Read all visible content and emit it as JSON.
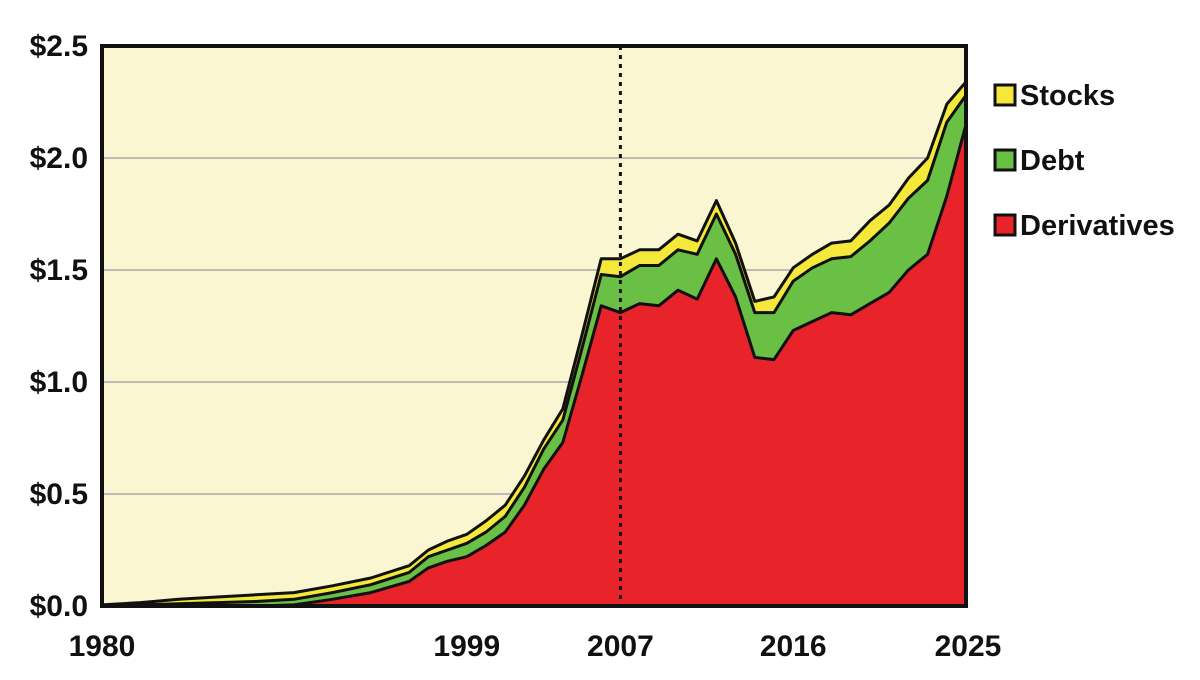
{
  "chart_data": {
    "type": "area",
    "stacked": true,
    "x_min": 1980,
    "x_max": 2025,
    "ylim": [
      0,
      2.5
    ],
    "grid": true,
    "legend_position": "right",
    "y_ticks": [
      {
        "value": 0.0,
        "label": "$0.0"
      },
      {
        "value": 0.5,
        "label": "$0.5"
      },
      {
        "value": 1.0,
        "label": "$1.0"
      },
      {
        "value": 1.5,
        "label": "$1.5"
      },
      {
        "value": 2.0,
        "label": "$2.0"
      },
      {
        "value": 2.5,
        "label": "$2.5"
      }
    ],
    "x_ticks": [
      {
        "value": 1980,
        "label": "1980"
      },
      {
        "value": 1999,
        "label": "1999"
      },
      {
        "value": 2007,
        "label": "2007"
      },
      {
        "value": 2016,
        "label": "2016"
      },
      {
        "value": 2025,
        "label": "2025"
      }
    ],
    "vertical_marker": 2007,
    "x": [
      1980,
      1982,
      1984,
      1986,
      1988,
      1990,
      1992,
      1994,
      1996,
      1997,
      1998,
      1999,
      2000,
      2001,
      2002,
      2003,
      2004,
      2005,
      2006,
      2007,
      2008,
      2009,
      2010,
      2011,
      2012,
      2013,
      2014,
      2015,
      2016,
      2017,
      2018,
      2019,
      2020,
      2021,
      2022,
      2023,
      2024,
      2025
    ],
    "series": [
      {
        "name": "Derivatives",
        "color": "#e8242a",
        "values": [
          0,
          0,
          0,
          0,
          0,
          0.005,
          0.03,
          0.06,
          0.11,
          0.17,
          0.2,
          0.22,
          0.27,
          0.33,
          0.45,
          0.61,
          0.73,
          1.03,
          1.34,
          1.31,
          1.35,
          1.34,
          1.41,
          1.37,
          1.55,
          1.38,
          1.11,
          1.1,
          1.23,
          1.27,
          1.31,
          1.3,
          1.35,
          1.4,
          1.5,
          1.57,
          1.83,
          2.15
        ]
      },
      {
        "name": "Debt",
        "color": "#6abf45",
        "values": [
          0,
          0.005,
          0.01,
          0.015,
          0.02,
          0.025,
          0.03,
          0.035,
          0.04,
          0.05,
          0.05,
          0.06,
          0.06,
          0.07,
          0.08,
          0.09,
          0.1,
          0.12,
          0.14,
          0.16,
          0.17,
          0.18,
          0.18,
          0.2,
          0.2,
          0.19,
          0.2,
          0.21,
          0.22,
          0.24,
          0.24,
          0.26,
          0.28,
          0.31,
          0.32,
          0.33,
          0.33,
          0.13
        ]
      },
      {
        "name": "Stocks",
        "color": "#f4e93a",
        "values": [
          0.005,
          0.01,
          0.02,
          0.025,
          0.03,
          0.03,
          0.03,
          0.03,
          0.03,
          0.03,
          0.04,
          0.04,
          0.05,
          0.05,
          0.05,
          0.04,
          0.05,
          0.06,
          0.07,
          0.08,
          0.07,
          0.07,
          0.07,
          0.06,
          0.06,
          0.05,
          0.05,
          0.07,
          0.06,
          0.06,
          0.07,
          0.07,
          0.09,
          0.08,
          0.09,
          0.1,
          0.08,
          0.06
        ]
      }
    ],
    "legend": [
      {
        "label": "Stocks",
        "color": "#f4e93a"
      },
      {
        "label": "Debt",
        "color": "#6abf45"
      },
      {
        "label": "Derivatives",
        "color": "#e8242a"
      }
    ]
  },
  "colors": {
    "plot_background": "#faf6d2",
    "gridline": "#a9a9a9",
    "outline": "#111111"
  }
}
